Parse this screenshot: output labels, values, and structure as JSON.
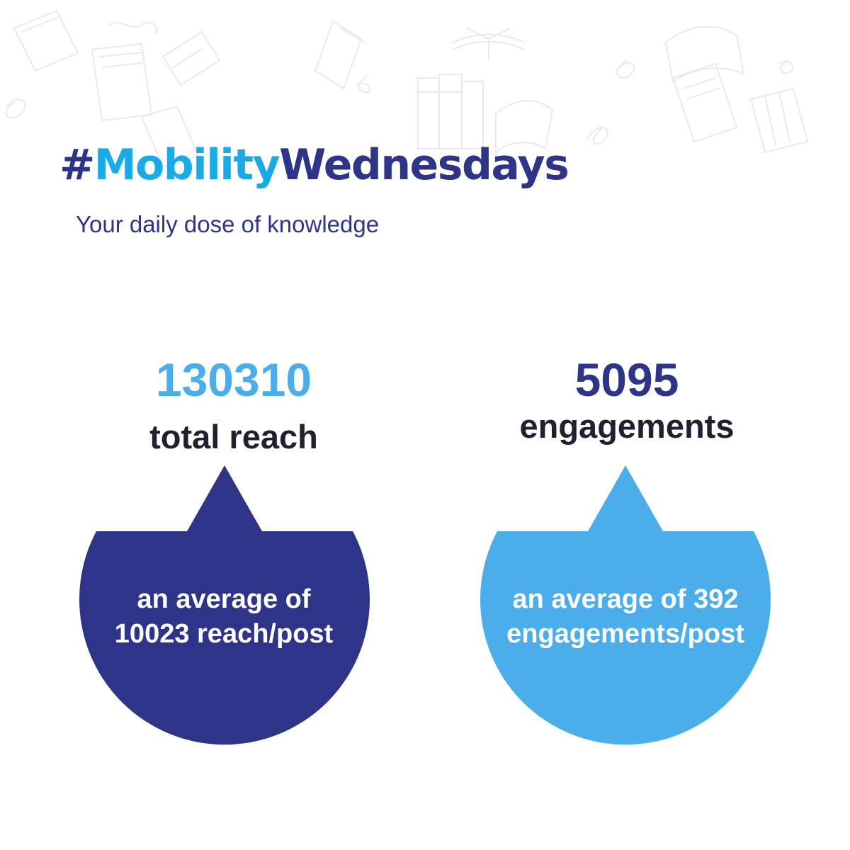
{
  "header": {
    "hashtag": "#",
    "title_part1": "Mobility",
    "title_part2": "Wednesdays",
    "subtitle": "Your daily dose of knowledge"
  },
  "stats": [
    {
      "value": "130310",
      "label": "total reach",
      "bubble_line1": "an average of",
      "bubble_line2": "10023 reach/post",
      "color": "#2e3589",
      "value_color": "#4badea"
    },
    {
      "value": "5095",
      "label": "engagements",
      "bubble_line1": "an average of 392",
      "bubble_line2": "engagements/post",
      "color": "#4badea",
      "value_color": "#2e3589"
    }
  ],
  "colors": {
    "navy": "#2e3589",
    "sky": "#4badea",
    "text_dark": "#1f2030",
    "doodle": "#ece8ec"
  },
  "icons": [
    "book-doodle-pattern"
  ]
}
